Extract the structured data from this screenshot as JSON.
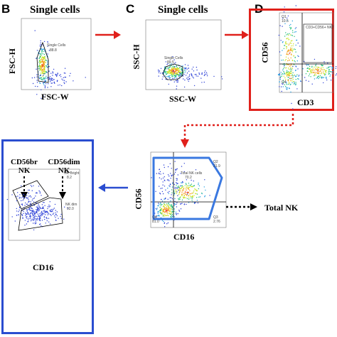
{
  "panels": {
    "b": {
      "letter": "B",
      "title": "Single cells",
      "x_label": "FSC-W",
      "y_label": "FSC-H",
      "gate_name": "Single Cells",
      "gate_value": "88.8"
    },
    "c": {
      "letter": "C",
      "title": "Single cells",
      "x_label": "SSC-W",
      "y_label": "SSC-H",
      "gate_name": "Single Cells",
      "gate_value": "89.5"
    },
    "d": {
      "letter": "D",
      "x_label": "CD3",
      "y_label": "CD56",
      "q1_name": "Q1",
      "q1_value": "10.5",
      "q2_name": "CD3+CD56+ NKT",
      "q4_name": "Q4"
    },
    "nk": {
      "x_label": "CD16",
      "y_label": "CD56",
      "total_gate_name": "Total NK cells",
      "total_gate_value": "70.2",
      "q2_name": "Q2",
      "q2_value": "21.9",
      "q3_name": "Q3",
      "q3_value": "2.76",
      "q4_name": "Q4",
      "q4_value": "81.0",
      "callout": "Total NK"
    },
    "subsets": {
      "x_label": "CD16",
      "bright_label_line1": "CD56br",
      "bright_label_line2": "NK",
      "dim_label_line1": "CD56dim",
      "dim_label_line2": "NK",
      "bright_gate_name": "NK Bright",
      "bright_gate_value": "8.2",
      "dim_gate_name": "NK dim",
      "dim_gate_value": "92.0"
    }
  },
  "colors": {
    "arrow_red": "#e0201b",
    "panel_red": "#e0201b",
    "panel_blue": "#2a4dd0",
    "arrow_blue": "#2a4dd0",
    "gate_blue": "#3a78e0",
    "dot_blue": "#3a55d8"
  }
}
